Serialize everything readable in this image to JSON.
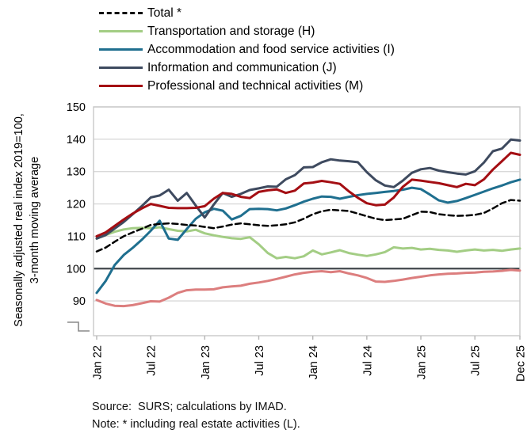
{
  "legend": {
    "items": [
      {
        "label": "Total *",
        "color": "#000000",
        "dashed": true
      },
      {
        "label": "Transportation and storage (H)",
        "color": "#A3CD84",
        "dashed": false
      },
      {
        "label": "Accommodation and food service activities (I)",
        "color": "#1F6F8F",
        "dashed": false
      },
      {
        "label": "Information and communication (J)",
        "color": "#3E4A5F",
        "dashed": false
      },
      {
        "label": "Professional and technical activities (M)",
        "color": "#A40E13",
        "dashed": false
      }
    ]
  },
  "y_axis_title": {
    "line1": "Seasonally adjusted real index 2019=100,",
    "line2": "3-month moving average"
  },
  "footer": {
    "source": "Source:  SURS; calculations by IMAD.",
    "note": "Note: * including real estate activities (L)."
  },
  "chart_data": {
    "type": "line",
    "x_unit": "month",
    "x_range": [
      "Jan 2022",
      "Dec 2025"
    ],
    "n_points": 48,
    "x_tick_labels": [
      "Jan 22",
      "Jul 22",
      "Jan 23",
      "Jul 23",
      "Jan 24",
      "Jul 24",
      "Jan 25",
      "Jul 25",
      "Dec 25"
    ],
    "x_tick_month_index": [
      0,
      6,
      12,
      18,
      24,
      30,
      36,
      42,
      47
    ],
    "y_ticks": [
      90,
      100,
      110,
      120,
      130,
      140,
      150
    ],
    "ylim": [
      85,
      150
    ],
    "axis_break_below_90": true,
    "baseline_value": 100,
    "grid_color": "#D9D9D9",
    "border_color": "#C9C9C9",
    "baseline_color": "#41474B",
    "tick_color": "#B5B5B5",
    "series": [
      {
        "id": "unlabeled-salmon",
        "name": "(no legend entry)",
        "color": "#DC7E7E",
        "width": 3,
        "dash": null,
        "values": [
          90.3,
          89.2,
          88.5,
          88.4,
          88.7,
          89.3,
          89.9,
          89.8,
          91.0,
          92.5,
          93.3,
          93.5,
          93.5,
          93.6,
          94.2,
          94.5,
          94.7,
          95.3,
          95.7,
          96.2,
          96.8,
          97.5,
          98.2,
          98.7,
          99.0,
          99.2,
          98.9,
          99.2,
          98.5,
          97.9,
          97.1,
          96.0,
          95.9,
          96.2,
          96.6,
          97.1,
          97.5,
          97.9,
          98.2,
          98.4,
          98.5,
          98.7,
          98.8,
          99.0,
          99.1,
          99.3,
          99.6,
          99.4
        ]
      },
      {
        "id": "transportation",
        "name": "Transportation and storage (H)",
        "color": "#A3CD84",
        "width": 3,
        "dash": null,
        "values": [
          109.3,
          110.4,
          111.4,
          112.1,
          112.5,
          112.6,
          112.5,
          112.8,
          112.2,
          111.7,
          111.5,
          112.0,
          110.9,
          110.3,
          109.8,
          109.4,
          109.2,
          109.7,
          107.5,
          104.8,
          103.2,
          103.6,
          103.2,
          103.8,
          105.6,
          104.4,
          105.0,
          105.7,
          104.8,
          104.3,
          103.9,
          104.4,
          105.1,
          106.6,
          106.2,
          106.4,
          105.9,
          106.1,
          105.8,
          105.6,
          105.2,
          105.6,
          105.9,
          105.6,
          105.8,
          105.5,
          105.9,
          106.2
        ]
      },
      {
        "id": "accommodation",
        "name": "Accommodation and food service activities (I)",
        "color": "#1F6F8F",
        "width": 3,
        "dash": null,
        "values": [
          92.5,
          96.2,
          101.1,
          104.2,
          106.4,
          108.9,
          111.7,
          114.8,
          109.3,
          108.9,
          112.2,
          115.4,
          117.4,
          118.5,
          117.9,
          115.2,
          116.3,
          118.4,
          118.5,
          118.4,
          118.0,
          118.6,
          119.6,
          120.7,
          121.6,
          122.3,
          122.2,
          121.6,
          122.2,
          122.7,
          123.1,
          123.4,
          123.7,
          124.0,
          124.4,
          125.0,
          124.6,
          122.9,
          121.1,
          120.4,
          120.9,
          121.8,
          122.8,
          123.8,
          124.8,
          125.7,
          126.7,
          127.5
        ]
      },
      {
        "id": "information",
        "name": "Information and communication (J)",
        "color": "#3E4A5F",
        "width": 3,
        "dash": null,
        "values": [
          109.3,
          110.4,
          112.4,
          114.4,
          116.8,
          119.3,
          122.0,
          122.6,
          124.4,
          121.0,
          123.4,
          119.5,
          115.8,
          119.8,
          123.4,
          122.2,
          123.1,
          124.3,
          124.8,
          125.4,
          125.3,
          127.6,
          128.9,
          131.3,
          131.4,
          132.9,
          133.8,
          133.4,
          133.2,
          132.9,
          129.8,
          127.3,
          125.7,
          125.2,
          127.2,
          129.6,
          130.7,
          131.1,
          130.3,
          129.8,
          129.4,
          129.1,
          130.1,
          132.8,
          136.3,
          137.1,
          139.9,
          139.6
        ]
      },
      {
        "id": "professional",
        "name": "Professional and technical activities (M)",
        "color": "#A40E13",
        "width": 3,
        "dash": null,
        "values": [
          110.0,
          111.2,
          113.2,
          115.2,
          117.0,
          118.6,
          120.0,
          119.4,
          118.8,
          118.7,
          118.7,
          118.8,
          119.3,
          121.6,
          123.4,
          123.1,
          122.2,
          121.8,
          123.7,
          124.2,
          124.5,
          123.4,
          124.1,
          126.3,
          126.6,
          127.1,
          126.7,
          126.2,
          123.9,
          121.9,
          120.2,
          119.6,
          119.8,
          122.0,
          125.3,
          127.5,
          127.2,
          126.8,
          126.4,
          125.8,
          125.2,
          126.2,
          125.8,
          127.6,
          130.6,
          133.2,
          135.8,
          135.2
        ]
      },
      {
        "id": "total",
        "name": "Total *",
        "color": "#000000",
        "width": 2.5,
        "dash": "7 4.5",
        "values": [
          105.3,
          106.5,
          108.3,
          110.0,
          111.2,
          112.3,
          113.5,
          113.8,
          114.0,
          113.8,
          113.5,
          113.3,
          112.9,
          112.5,
          113.0,
          113.6,
          114.0,
          113.7,
          113.4,
          113.2,
          113.4,
          113.7,
          114.3,
          115.4,
          116.8,
          117.7,
          118.2,
          118.0,
          117.8,
          117.0,
          116.2,
          115.4,
          115.0,
          115.2,
          115.4,
          116.5,
          117.6,
          117.5,
          116.8,
          116.5,
          116.3,
          116.4,
          116.6,
          117.2,
          118.6,
          120.2,
          121.2,
          121.0
        ]
      }
    ]
  }
}
